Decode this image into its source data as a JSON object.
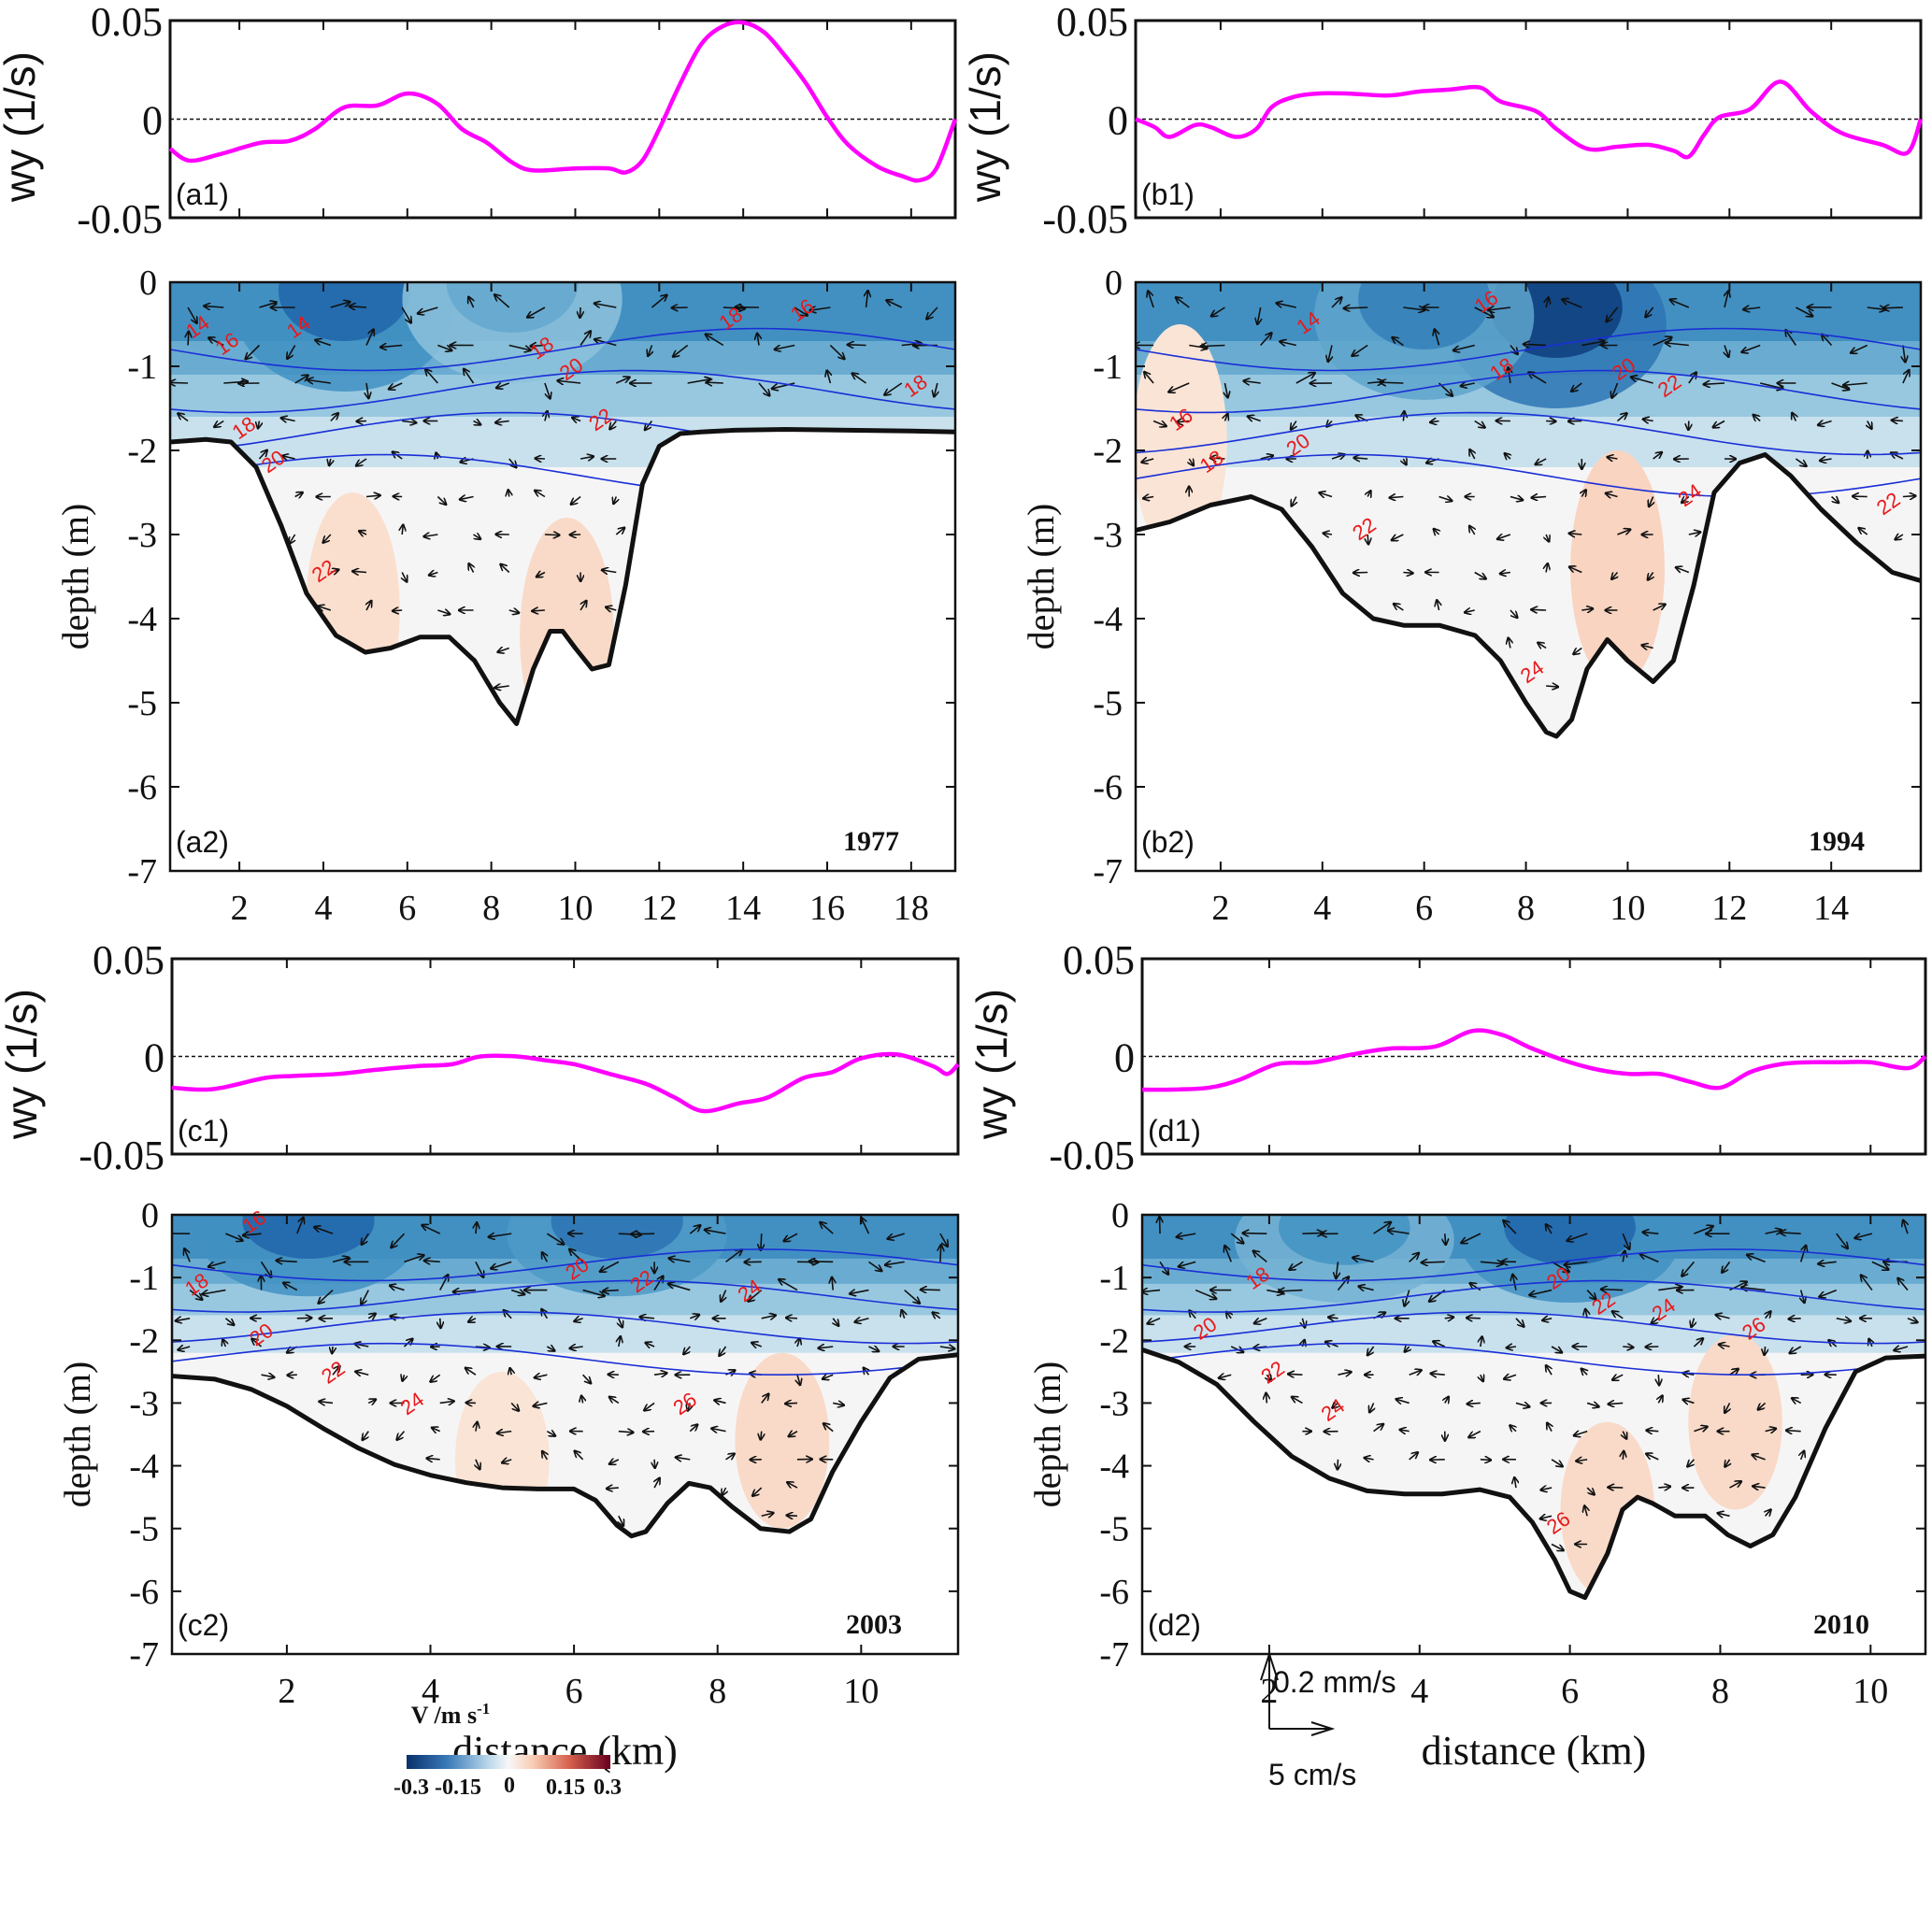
{
  "figure": {
    "colorbar": {
      "title": "V /m s",
      "title_sup": "-1",
      "ticks": [
        "-0.3",
        "-0.15",
        "0",
        "0.15",
        "0.3"
      ],
      "range": [
        -0.3,
        0.3
      ],
      "colors": [
        "#08306b",
        "#2f6faf",
        "#9cc6e0",
        "#f7f7f7",
        "#f6c2a6",
        "#d25a47",
        "#67001f"
      ]
    },
    "velocity_scale": {
      "vertical_label": "0.2 mm/s",
      "horizontal_label": "5 cm/s"
    }
  },
  "chart_data": [
    {
      "id": "a1",
      "type": "line",
      "panel_label": "(a1)",
      "ylabel": "wy (1/s)",
      "xlim": [
        0.35,
        19.05
      ],
      "ylim": [
        -0.05,
        0.05
      ],
      "yticks": [
        "0.05",
        "0",
        "-0.05"
      ],
      "xticks": [
        2,
        4,
        6,
        8,
        10,
        12,
        14,
        16,
        18
      ],
      "zero_line": true,
      "color": "#ff00ff",
      "x": [
        0.35,
        0.8,
        1.5,
        2.5,
        3.2,
        3.8,
        4.5,
        5.3,
        6.0,
        6.7,
        7.3,
        7.9,
        8.5,
        9.0,
        10.0,
        10.8,
        11.2,
        11.6,
        12.0,
        12.5,
        13.0,
        13.5,
        14.0,
        14.5,
        15.0,
        15.5,
        16.0,
        16.5,
        17.2,
        17.8,
        18.2,
        18.6,
        19.05
      ],
      "y": [
        -0.015,
        -0.021,
        -0.018,
        -0.012,
        -0.011,
        -0.005,
        0.006,
        0.007,
        0.013,
        0.008,
        -0.005,
        -0.012,
        -0.022,
        -0.026,
        -0.025,
        -0.025,
        -0.027,
        -0.021,
        -0.005,
        0.018,
        0.038,
        0.047,
        0.049,
        0.044,
        0.032,
        0.018,
        0.001,
        -0.013,
        -0.024,
        -0.029,
        -0.031,
        -0.025,
        -0.0
      ]
    },
    {
      "id": "b1",
      "type": "line",
      "panel_label": "(b1)",
      "ylabel": "wy (1/s)",
      "xlim": [
        0.33,
        15.76
      ],
      "ylim": [
        -0.05,
        0.05
      ],
      "yticks": [
        "0.05",
        "0",
        "-0.05"
      ],
      "xticks": [
        2,
        4,
        6,
        8,
        10,
        12,
        14
      ],
      "zero_line": true,
      "color": "#ff00ff",
      "x": [
        0.33,
        0.7,
        1.0,
        1.5,
        1.8,
        2.3,
        2.7,
        3.0,
        3.4,
        3.9,
        4.5,
        5.3,
        5.9,
        6.5,
        7.1,
        7.5,
        8.2,
        8.6,
        9.2,
        9.8,
        10.4,
        10.9,
        11.2,
        11.5,
        11.8,
        12.4,
        13.0,
        13.6,
        14.2,
        15.0,
        15.5,
        15.76
      ],
      "y": [
        0.0,
        -0.004,
        -0.009,
        -0.003,
        -0.004,
        -0.009,
        -0.005,
        0.006,
        0.011,
        0.013,
        0.013,
        0.012,
        0.014,
        0.015,
        0.016,
        0.009,
        0.004,
        -0.005,
        -0.015,
        -0.014,
        -0.013,
        -0.016,
        -0.019,
        -0.008,
        0.001,
        0.005,
        0.019,
        0.004,
        -0.007,
        -0.013,
        -0.017,
        0.0
      ]
    },
    {
      "id": "a2",
      "type": "heatmap",
      "subtype": "velocity-section",
      "panel_label": "(a2)",
      "year": "1977",
      "ylabel": "depth (m)",
      "xlim": [
        0.35,
        19.05
      ],
      "ylim": [
        -7,
        0
      ],
      "yticks": [
        "0",
        "-1",
        "-2",
        "-3",
        "-4",
        "-5",
        "-6",
        "-7"
      ],
      "xticks": [
        2,
        4,
        6,
        8,
        10,
        12,
        14,
        16,
        18
      ],
      "bottom_x": [
        0.35,
        1.2,
        1.8,
        2.4,
        3.0,
        3.6,
        4.3,
        5.0,
        5.6,
        6.3,
        7.0,
        7.6,
        8.2,
        8.6,
        9.0,
        9.4,
        9.7,
        10.0,
        10.4,
        10.8,
        11.2,
        11.6,
        12.0,
        12.5,
        13.0,
        13.8,
        15.0,
        16.5,
        18.0,
        19.05
      ],
      "bottom_y": [
        -1.9,
        -1.87,
        -1.9,
        -2.2,
        -2.9,
        -3.7,
        -4.2,
        -4.4,
        -4.35,
        -4.22,
        -4.22,
        -4.5,
        -5.0,
        -5.25,
        -4.6,
        -4.15,
        -4.15,
        -4.35,
        -4.6,
        -4.55,
        -3.6,
        -2.4,
        -1.95,
        -1.8,
        -1.78,
        -1.76,
        -1.75,
        -1.76,
        -1.77,
        -1.78
      ],
      "contour_labels": [
        {
          "text": "14",
          "x": 1.1,
          "y": -0.6
        },
        {
          "text": "14",
          "x": 3.5,
          "y": -0.6
        },
        {
          "text": "16",
          "x": 1.8,
          "y": -0.8
        },
        {
          "text": "18",
          "x": 2.2,
          "y": -1.8
        },
        {
          "text": "20",
          "x": 2.9,
          "y": -2.2
        },
        {
          "text": "22",
          "x": 4.1,
          "y": -3.5
        },
        {
          "text": "18",
          "x": 9.3,
          "y": -0.85
        },
        {
          "text": "20",
          "x": 10.0,
          "y": -1.1
        },
        {
          "text": "22",
          "x": 10.7,
          "y": -1.7
        },
        {
          "text": "18",
          "x": 13.8,
          "y": -0.5
        },
        {
          "text": "16",
          "x": 15.5,
          "y": -0.4
        },
        {
          "text": "18",
          "x": 18.2,
          "y": -1.3
        }
      ],
      "surface_blue_core": [
        {
          "x": 4.5,
          "depth": -0.3,
          "v": -0.22
        },
        {
          "x": 8.5,
          "depth": -0.2,
          "v": -0.12
        }
      ],
      "positive_patches": [
        {
          "x": 9.8,
          "depth": -4.2,
          "v": 0.05
        },
        {
          "x": 4.7,
          "depth": -3.9,
          "v": 0.04
        }
      ]
    },
    {
      "id": "b2",
      "type": "heatmap",
      "subtype": "velocity-section",
      "panel_label": "(b2)",
      "year": "1994",
      "ylabel": "depth (m)",
      "xlim": [
        0.33,
        15.76
      ],
      "ylim": [
        -7,
        0
      ],
      "yticks": [
        "0",
        "-1",
        "-2",
        "-3",
        "-4",
        "-5",
        "-6",
        "-7"
      ],
      "xticks": [
        2,
        4,
        6,
        8,
        10,
        12,
        14
      ],
      "bottom_x": [
        0.33,
        1.0,
        1.8,
        2.6,
        3.2,
        3.8,
        4.4,
        5.0,
        5.6,
        6.3,
        7.0,
        7.5,
        8.0,
        8.4,
        8.6,
        8.9,
        9.2,
        9.6,
        10.0,
        10.5,
        10.9,
        11.3,
        11.7,
        12.2,
        12.7,
        13.2,
        13.8,
        14.5,
        15.2,
        15.76
      ],
      "bottom_y": [
        -2.95,
        -2.85,
        -2.65,
        -2.55,
        -2.7,
        -3.15,
        -3.7,
        -4.0,
        -4.08,
        -4.08,
        -4.2,
        -4.5,
        -5.0,
        -5.35,
        -5.4,
        -5.2,
        -4.6,
        -4.25,
        -4.5,
        -4.75,
        -4.5,
        -3.6,
        -2.5,
        -2.15,
        -2.05,
        -2.3,
        -2.7,
        -3.1,
        -3.45,
        -3.55
      ],
      "contour_labels": [
        {
          "text": "14",
          "x": 3.8,
          "y": -0.55
        },
        {
          "text": "16",
          "x": 7.3,
          "y": -0.3
        },
        {
          "text": "18",
          "x": 7.6,
          "y": -1.1
        },
        {
          "text": "20",
          "x": 10.0,
          "y": -1.1
        },
        {
          "text": "22",
          "x": 10.9,
          "y": -1.3
        },
        {
          "text": "16",
          "x": 1.3,
          "y": -1.7
        },
        {
          "text": "18",
          "x": 1.9,
          "y": -2.2
        },
        {
          "text": "20",
          "x": 3.6,
          "y": -2.0
        },
        {
          "text": "22",
          "x": 4.9,
          "y": -3.0
        },
        {
          "text": "24",
          "x": 8.2,
          "y": -4.7
        },
        {
          "text": "24",
          "x": 11.3,
          "y": -2.6
        },
        {
          "text": "22",
          "x": 15.2,
          "y": -2.7
        }
      ],
      "surface_blue_core": [
        {
          "x": 8.6,
          "depth": -0.5,
          "v": -0.28
        },
        {
          "x": 6.0,
          "depth": -0.4,
          "v": -0.18
        }
      ],
      "positive_patches": [
        {
          "x": 9.8,
          "depth": -3.4,
          "v": 0.06
        },
        {
          "x": 1.2,
          "depth": -1.9,
          "v": 0.03
        }
      ]
    },
    {
      "id": "c1",
      "type": "line",
      "panel_label": "(c1)",
      "ylabel": "wy (1/s)",
      "xlim": [
        0.4,
        11.35
      ],
      "ylim": [
        -0.05,
        0.05
      ],
      "yticks": [
        "0.05",
        "0",
        "-0.05"
      ],
      "xticks": [
        2,
        4,
        6,
        8,
        10
      ],
      "zero_line": true,
      "color": "#ff00ff",
      "x": [
        0.4,
        0.8,
        1.1,
        1.7,
        2.1,
        2.7,
        3.2,
        3.8,
        4.3,
        4.7,
        5.2,
        5.6,
        6.0,
        6.5,
        7.0,
        7.4,
        7.8,
        8.3,
        8.7,
        9.2,
        9.6,
        10.0,
        10.5,
        11.0,
        11.2,
        11.35
      ],
      "y": [
        -0.016,
        -0.017,
        -0.016,
        -0.011,
        -0.01,
        -0.009,
        -0.007,
        -0.005,
        -0.004,
        0.0,
        0.0,
        -0.002,
        -0.004,
        -0.009,
        -0.014,
        -0.021,
        -0.028,
        -0.024,
        -0.021,
        -0.011,
        -0.008,
        -0.001,
        0.001,
        -0.005,
        -0.009,
        -0.004
      ]
    },
    {
      "id": "d1",
      "type": "line",
      "panel_label": "(d1)",
      "ylabel": "wy (1/s)",
      "xlim": [
        0.31,
        10.73
      ],
      "ylim": [
        -0.05,
        0.05
      ],
      "yticks": [
        "0.05",
        "0",
        "-0.05"
      ],
      "xticks": [
        2,
        4,
        6,
        8,
        10
      ],
      "zero_line": true,
      "color": "#ff00ff",
      "x": [
        0.31,
        0.7,
        1.2,
        1.6,
        2.1,
        2.6,
        3.1,
        3.6,
        4.2,
        4.7,
        5.1,
        5.5,
        6.0,
        6.4,
        6.8,
        7.2,
        7.6,
        8.0,
        8.4,
        8.8,
        9.2,
        9.6,
        10.0,
        10.5,
        10.73
      ],
      "y": [
        -0.017,
        -0.017,
        -0.016,
        -0.012,
        -0.004,
        -0.003,
        0.001,
        0.004,
        0.005,
        0.013,
        0.011,
        0.004,
        -0.003,
        -0.007,
        -0.009,
        -0.009,
        -0.013,
        -0.016,
        -0.008,
        -0.004,
        -0.003,
        -0.003,
        -0.003,
        -0.006,
        0.0
      ]
    },
    {
      "id": "c2",
      "type": "heatmap",
      "subtype": "velocity-section",
      "panel_label": "(c2)",
      "year": "2003",
      "ylabel": "depth (m)",
      "xlabel": "distance (km)",
      "xlim": [
        0.4,
        11.35
      ],
      "ylim": [
        -7,
        0
      ],
      "yticks": [
        "0",
        "-1",
        "-2",
        "-3",
        "-4",
        "-5",
        "-6",
        "-7"
      ],
      "xticks": [
        2,
        4,
        6,
        8,
        10
      ],
      "bottom_x": [
        0.4,
        1.0,
        1.5,
        2.0,
        2.5,
        3.0,
        3.5,
        4.0,
        4.5,
        5.0,
        5.5,
        6.0,
        6.3,
        6.6,
        6.8,
        7.0,
        7.3,
        7.6,
        7.9,
        8.2,
        8.6,
        9.0,
        9.3,
        9.6,
        10.0,
        10.4,
        10.8,
        11.35
      ],
      "bottom_y": [
        -2.57,
        -2.62,
        -2.78,
        -3.05,
        -3.4,
        -3.72,
        -3.98,
        -4.15,
        -4.27,
        -4.35,
        -4.37,
        -4.37,
        -4.55,
        -4.95,
        -5.12,
        -5.05,
        -4.6,
        -4.28,
        -4.35,
        -4.65,
        -5.0,
        -5.05,
        -4.85,
        -4.1,
        -3.3,
        -2.6,
        -2.3,
        -2.23
      ],
      "contour_labels": [
        {
          "text": "16",
          "x": 1.6,
          "y": -0.2
        },
        {
          "text": "18",
          "x": 0.8,
          "y": -1.2
        },
        {
          "text": "20",
          "x": 1.7,
          "y": -2.0
        },
        {
          "text": "22",
          "x": 2.7,
          "y": -2.6
        },
        {
          "text": "24",
          "x": 3.8,
          "y": -3.1
        },
        {
          "text": "20",
          "x": 6.1,
          "y": -0.95
        },
        {
          "text": "22",
          "x": 7.0,
          "y": -1.15
        },
        {
          "text": "24",
          "x": 8.5,
          "y": -1.3
        },
        {
          "text": "26",
          "x": 7.6,
          "y": -3.1
        }
      ],
      "surface_blue_core": [
        {
          "x": 2.3,
          "depth": -0.3,
          "v": -0.22
        },
        {
          "x": 6.6,
          "depth": -0.3,
          "v": -0.2
        }
      ],
      "positive_patches": [
        {
          "x": 8.9,
          "depth": -3.6,
          "v": 0.05
        },
        {
          "x": 5.0,
          "depth": -3.9,
          "v": 0.03
        }
      ]
    },
    {
      "id": "d2",
      "type": "heatmap",
      "subtype": "velocity-section",
      "panel_label": "(d2)",
      "year": "2010",
      "ylabel": "depth (m)",
      "xlabel": "distance (km)",
      "xlim": [
        0.31,
        10.73
      ],
      "ylim": [
        -7,
        0
      ],
      "yticks": [
        "0",
        "-1",
        "-2",
        "-3",
        "-4",
        "-5",
        "-6",
        "-7"
      ],
      "xticks": [
        2,
        4,
        6,
        8,
        10
      ],
      "bottom_x": [
        0.31,
        0.8,
        1.3,
        1.8,
        2.3,
        2.8,
        3.3,
        3.8,
        4.3,
        4.8,
        5.2,
        5.5,
        5.8,
        6.0,
        6.2,
        6.5,
        6.7,
        6.9,
        7.1,
        7.4,
        7.8,
        8.1,
        8.4,
        8.7,
        9.0,
        9.4,
        9.8,
        10.2,
        10.73
      ],
      "bottom_y": [
        -2.15,
        -2.35,
        -2.7,
        -3.3,
        -3.85,
        -4.2,
        -4.4,
        -4.45,
        -4.45,
        -4.38,
        -4.5,
        -4.9,
        -5.5,
        -6.0,
        -6.1,
        -5.4,
        -4.7,
        -4.5,
        -4.6,
        -4.8,
        -4.8,
        -5.1,
        -5.28,
        -5.1,
        -4.5,
        -3.4,
        -2.5,
        -2.28,
        -2.25
      ],
      "contour_labels": [
        {
          "text": "18",
          "x": 1.9,
          "y": -1.1
        },
        {
          "text": "20",
          "x": 1.2,
          "y": -1.9
        },
        {
          "text": "22",
          "x": 2.1,
          "y": -2.6
        },
        {
          "text": "24",
          "x": 2.9,
          "y": -3.2
        },
        {
          "text": "20",
          "x": 5.9,
          "y": -1.1
        },
        {
          "text": "22",
          "x": 6.5,
          "y": -1.5
        },
        {
          "text": "24",
          "x": 7.3,
          "y": -1.6
        },
        {
          "text": "26",
          "x": 8.5,
          "y": -1.9
        },
        {
          "text": "26",
          "x": 5.9,
          "y": -5.0
        }
      ],
      "surface_blue_core": [
        {
          "x": 6.0,
          "depth": -0.4,
          "v": -0.22
        },
        {
          "x": 3.0,
          "depth": -0.4,
          "v": -0.15
        }
      ],
      "positive_patches": [
        {
          "x": 8.2,
          "depth": -3.3,
          "v": 0.05
        },
        {
          "x": 6.5,
          "depth": -4.7,
          "v": 0.05
        }
      ]
    }
  ]
}
